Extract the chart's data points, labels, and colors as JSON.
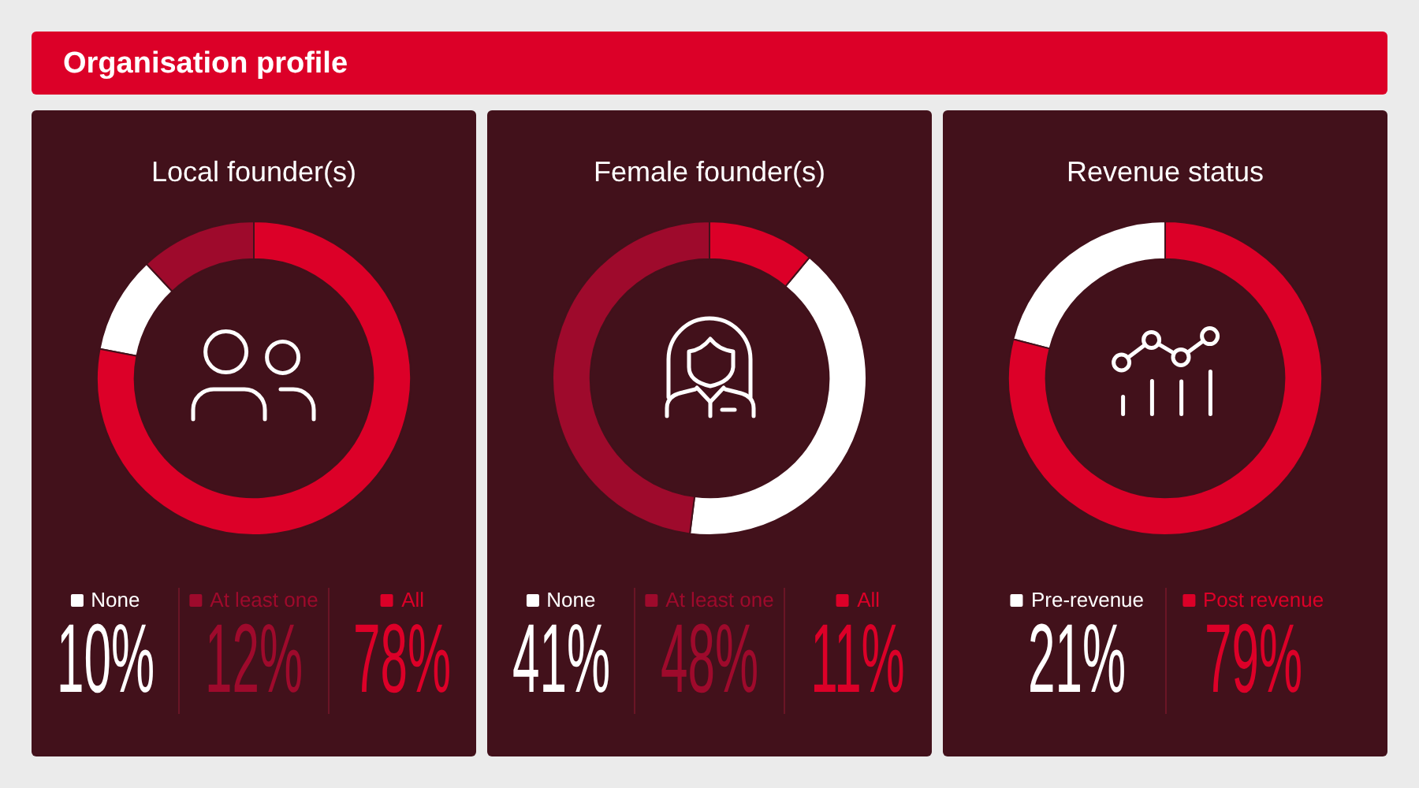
{
  "chart_data": [
    {
      "type": "other",
      "title": "Organisation profile"
    },
    {
      "type": "donut",
      "title": "Local founder(s)",
      "categories": [
        "None",
        "At least one",
        "All"
      ],
      "values": [
        10,
        12,
        78
      ],
      "colors": [
        "#ffffff",
        "#9e0a2c",
        "#dc0028"
      ],
      "value_labels": [
        "10%",
        "12%",
        "78%"
      ],
      "legend": "bottom"
    },
    {
      "type": "donut",
      "title": "Female founder(s)",
      "categories": [
        "None",
        "At least one",
        "All"
      ],
      "values": [
        41,
        48,
        11
      ],
      "colors": [
        "#ffffff",
        "#9e0a2c",
        "#dc0028"
      ],
      "value_labels": [
        "41%",
        "48%",
        "11%"
      ],
      "legend": "bottom"
    },
    {
      "type": "donut",
      "title": "Revenue status",
      "categories": [
        "Pre-revenue",
        "Post revenue"
      ],
      "values": [
        21,
        79
      ],
      "colors": [
        "#ffffff",
        "#dc0028"
      ],
      "value_labels": [
        "21%",
        "79%"
      ],
      "legend": "bottom"
    }
  ]
}
